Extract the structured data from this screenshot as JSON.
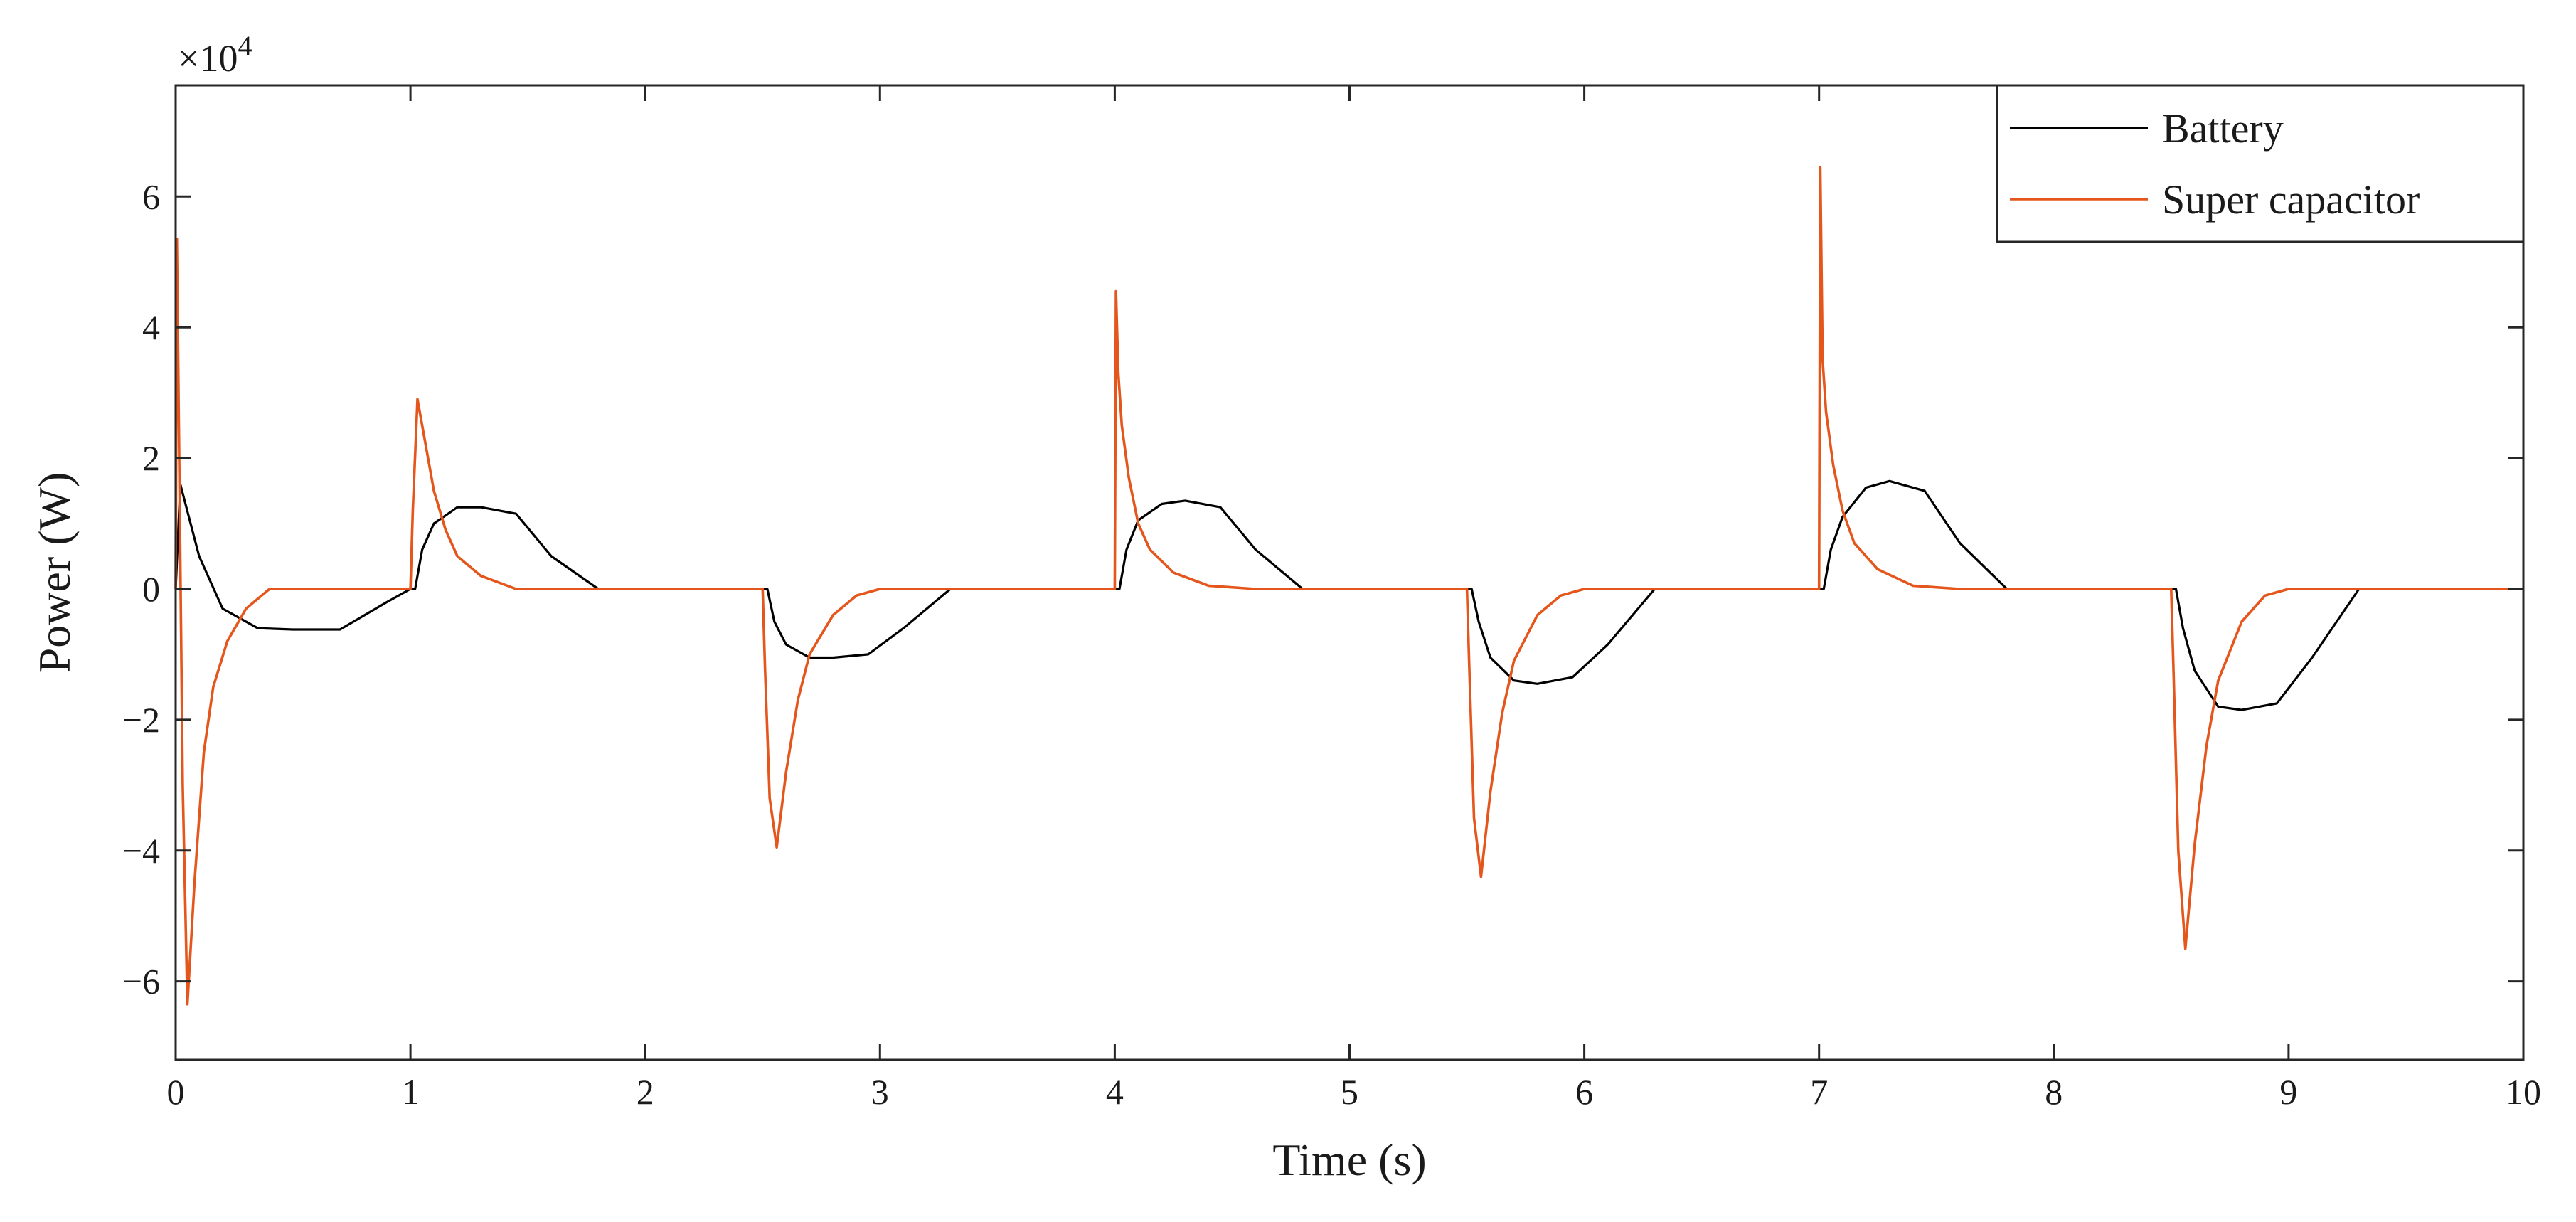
{
  "chart_data": {
    "type": "line",
    "title": "",
    "xlabel": "Time (s)",
    "ylabel": "Power (W)",
    "y_exponent_label": "×10",
    "y_exponent": "4",
    "xlim": [
      0,
      10
    ],
    "ylim": [
      -7.2,
      7.7
    ],
    "x_ticks": [
      0,
      1,
      2,
      3,
      4,
      5,
      6,
      7,
      8,
      9,
      10
    ],
    "x_tick_labels": [
      "0",
      "1",
      "2",
      "3",
      "4",
      "5",
      "6",
      "7",
      "8",
      "9",
      "10"
    ],
    "y_ticks": [
      -6,
      -4,
      -2,
      0,
      2,
      4,
      6
    ],
    "y_tick_labels": [
      "−6",
      "−4",
      "−2",
      "0",
      "2",
      "4",
      "6"
    ],
    "y_units_note": "values in units of 10^4 W",
    "grid": false,
    "legend_position": "top-right",
    "series": [
      {
        "name": "Battery",
        "color": "#000000",
        "x": [
          0,
          0.02,
          0.1,
          0.2,
          0.35,
          0.5,
          0.7,
          0.9,
          1.0,
          1.02,
          1.05,
          1.1,
          1.2,
          1.3,
          1.45,
          1.6,
          1.8,
          2.0,
          2.2,
          2.5,
          2.52,
          2.55,
          2.6,
          2.7,
          2.8,
          2.95,
          3.1,
          3.3,
          3.5,
          3.75,
          4.0,
          4.02,
          4.05,
          4.1,
          4.2,
          4.3,
          4.45,
          4.6,
          4.8,
          5.0,
          5.3,
          5.5,
          5.52,
          5.55,
          5.6,
          5.7,
          5.8,
          5.95,
          6.1,
          6.3,
          6.5,
          6.8,
          7.0,
          7.02,
          7.05,
          7.1,
          7.2,
          7.3,
          7.45,
          7.6,
          7.8,
          8.0,
          8.25,
          8.5,
          8.52,
          8.55,
          8.6,
          8.7,
          8.8,
          8.95,
          9.1,
          9.3,
          9.6,
          10.0
        ],
        "y": [
          0,
          1.6,
          0.5,
          -0.3,
          -0.6,
          -0.62,
          -0.62,
          -0.2,
          0,
          0,
          0.6,
          1.0,
          1.25,
          1.25,
          1.15,
          0.5,
          0,
          0,
          0,
          0,
          0,
          -0.5,
          -0.85,
          -1.05,
          -1.05,
          -1.0,
          -0.6,
          0,
          0,
          0,
          0,
          0,
          0.6,
          1.05,
          1.3,
          1.35,
          1.25,
          0.6,
          0,
          0,
          0,
          0,
          0,
          -0.5,
          -1.05,
          -1.4,
          -1.45,
          -1.35,
          -0.85,
          0,
          0,
          0,
          0,
          0,
          0.6,
          1.1,
          1.55,
          1.65,
          1.5,
          0.7,
          0,
          0,
          0,
          0,
          0,
          -0.6,
          -1.25,
          -1.8,
          -1.85,
          -1.75,
          -1.05,
          0,
          0,
          0
        ]
      },
      {
        "name": "Super capacitor",
        "color": "#e4561b",
        "x": [
          0,
          0.005,
          0.015,
          0.03,
          0.05,
          0.08,
          0.12,
          0.16,
          0.22,
          0.3,
          0.4,
          0.5,
          1.0,
          1.01,
          1.03,
          1.06,
          1.1,
          1.15,
          1.2,
          1.3,
          1.45,
          1.6,
          2.5,
          2.51,
          2.53,
          2.56,
          2.6,
          2.65,
          2.7,
          2.8,
          2.9,
          3.0,
          4.0,
          4.005,
          4.015,
          4.03,
          4.06,
          4.1,
          4.15,
          4.25,
          4.4,
          4.6,
          5.5,
          5.51,
          5.53,
          5.56,
          5.6,
          5.65,
          5.7,
          5.8,
          5.9,
          6.0,
          7.0,
          7.005,
          7.015,
          7.03,
          7.06,
          7.1,
          7.15,
          7.25,
          7.4,
          7.6,
          8.5,
          8.51,
          8.53,
          8.56,
          8.6,
          8.65,
          8.7,
          8.8,
          8.9,
          9.0,
          10.0
        ],
        "y": [
          0,
          5.35,
          2.0,
          -3.0,
          -6.35,
          -4.5,
          -2.5,
          -1.5,
          -0.8,
          -0.3,
          0,
          0,
          0,
          1.2,
          2.9,
          2.3,
          1.5,
          0.9,
          0.5,
          0.2,
          0,
          0,
          0,
          -1.2,
          -3.2,
          -3.95,
          -2.8,
          -1.7,
          -1.0,
          -0.4,
          -0.1,
          0,
          0,
          4.55,
          3.3,
          2.5,
          1.7,
          1.0,
          0.6,
          0.25,
          0.05,
          0,
          0,
          -1.2,
          -3.5,
          -4.4,
          -3.1,
          -1.9,
          -1.1,
          -0.4,
          -0.1,
          0,
          0,
          6.45,
          3.5,
          2.7,
          1.9,
          1.2,
          0.7,
          0.3,
          0.05,
          0,
          0,
          -1.3,
          -4.0,
          -5.5,
          -3.9,
          -2.4,
          -1.4,
          -0.5,
          -0.1,
          0,
          0
        ]
      }
    ]
  }
}
